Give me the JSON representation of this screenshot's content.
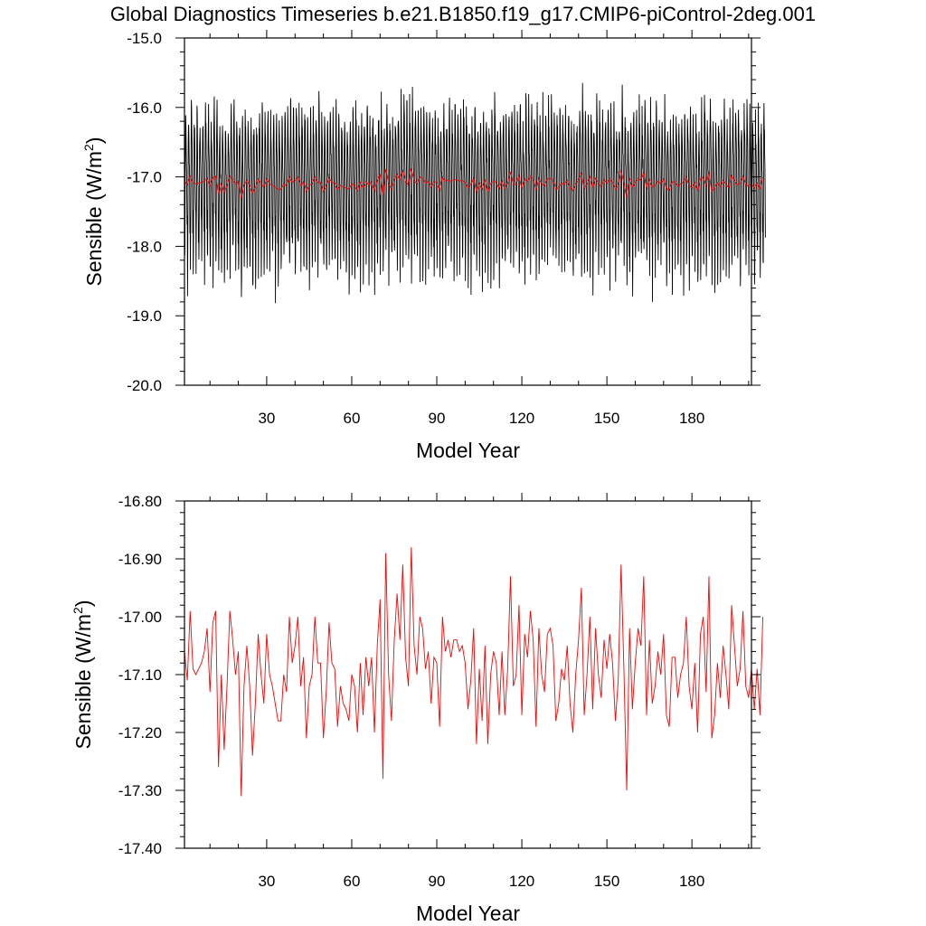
{
  "title": "Global Diagnostics Timeseries b.e21.B1850.f19_g17.CMIP6-piControl-2deg.001",
  "colors": {
    "monthly": "#000000",
    "annual": "#ff0000",
    "frame": "#000000"
  },
  "chart_data": [
    {
      "type": "line",
      "xlabel": "Model Year",
      "ylabel": "Sensible (W/m",
      "ylabel_sup": "2",
      "ylabel_close": ")",
      "xlim": [
        1,
        201
      ],
      "ylim": [
        -20.0,
        -15.0
      ],
      "x_ticks": [
        30,
        60,
        90,
        120,
        150,
        180
      ],
      "x_tick_labels": [
        "30",
        "60",
        "90",
        "120",
        "150",
        "180"
      ],
      "y_ticks": [
        -20.0,
        -19.0,
        -18.0,
        -17.0,
        -16.0,
        -15.0
      ],
      "y_tick_labels": [
        "-20.0",
        "-19.0",
        "-18.0",
        "-17.0",
        "-16.0",
        "-15.0"
      ],
      "series": [
        {
          "role": "monthly",
          "color": "#000000",
          "x_start": 1,
          "x_step": 0.08333,
          "monthly_cycle": [
            -17.7,
            -18.4,
            -18.1,
            -17.3,
            -16.6,
            -16.2,
            -16.3,
            -16.5,
            -16.8,
            -17.0,
            -17.3,
            -17.8
          ]
        },
        {
          "role": "annual",
          "color": "#ff0000",
          "x_start": 1,
          "x_step": 1,
          "values": [
            -17.06,
            -17.11,
            -16.99,
            -17.09,
            -17.1,
            -17.09,
            -17.08,
            -17.06,
            -17.02,
            -17.13,
            -17.01,
            -16.99,
            -17.26,
            -17.1,
            -17.23,
            -17.12,
            -16.99,
            -17.04,
            -17.1,
            -17.06,
            -17.31,
            -17.12,
            -17.05,
            -17.12,
            -17.24,
            -17.15,
            -17.03,
            -17.1,
            -17.15,
            -17.03,
            -17.1,
            -17.12,
            -17.15,
            -17.18,
            -17.18,
            -17.1,
            -17.13,
            -17.0,
            -17.08,
            -17.05,
            -17.0,
            -17.12,
            -17.07,
            -17.21,
            -17.12,
            -17.1,
            -17.0,
            -17.08,
            -17.08,
            -17.21,
            -17.13,
            -17.01,
            -17.08,
            -17.09,
            -17.19,
            -17.12,
            -17.15,
            -17.16,
            -17.18,
            -17.1,
            -17.12,
            -17.2,
            -17.08,
            -17.17,
            -17.07,
            -17.12,
            -17.07,
            -17.2,
            -17.05,
            -16.97,
            -17.28,
            -16.89,
            -17.1,
            -17.18,
            -17.04,
            -16.96,
            -17.04,
            -16.91,
            -17.07,
            -17.12,
            -16.88,
            -17.05,
            -17.1,
            -17.0,
            -17.02,
            -17.09,
            -17.06,
            -17.15,
            -17.07,
            -17.08,
            -17.19,
            -17.0,
            -17.06,
            -17.04,
            -17.07,
            -17.04,
            -17.04,
            -17.06,
            -17.05,
            -17.08,
            -17.16,
            -17.11,
            -17.02,
            -17.22,
            -17.09,
            -17.18,
            -17.05,
            -17.22,
            -17.1,
            -17.06,
            -17.08,
            -17.17,
            -17.06,
            -17.17,
            -17.09,
            -16.93,
            -17.12,
            -17.1,
            -16.98,
            -17.17,
            -17.03,
            -17.07,
            -16.99,
            -17.04,
            -17.19,
            -17.02,
            -17.1,
            -17.13,
            -17.03,
            -17.02,
            -17.05,
            -17.18,
            -17.15,
            -17.09,
            -17.11,
            -17.05,
            -17.15,
            -17.2,
            -17.1,
            -17.04,
            -16.95,
            -17.17,
            -17.1,
            -17.0,
            -17.16,
            -17.02,
            -17.1,
            -17.14,
            -17.04,
            -17.09,
            -17.03,
            -17.08,
            -17.18,
            -17.11,
            -16.91,
            -17.09,
            -17.3,
            -17.02,
            -17.16,
            -17.08,
            -17.02,
            -17.05,
            -16.93,
            -17.17,
            -17.04,
            -17.15,
            -17.12,
            -17.06,
            -17.1,
            -17.03,
            -17.17,
            -17.19,
            -17.07,
            -17.07,
            -17.14,
            -17.1,
            -17.08,
            -17.0,
            -17.12,
            -17.16,
            -17.08,
            -17.2,
            -17.03,
            -17.0,
            -17.13,
            -16.93,
            -17.21,
            -17.17,
            -17.08,
            -17.14,
            -17.05,
            -17.1,
            -17.16,
            -16.98,
            -17.05,
            -17.12,
            -17.09,
            -16.99,
            -17.12,
            -17.14,
            -17.09,
            -17.16,
            -17.09,
            -17.17,
            -17.0
          ]
        }
      ]
    },
    {
      "type": "line",
      "xlabel": "Model Year",
      "ylabel": "Sensible (W/m",
      "ylabel_sup": "2",
      "ylabel_close": ")",
      "xlim": [
        1,
        201
      ],
      "ylim": [
        -17.4,
        -16.8
      ],
      "x_ticks": [
        30,
        60,
        90,
        120,
        150,
        180
      ],
      "x_tick_labels": [
        "30",
        "60",
        "90",
        "120",
        "150",
        "180"
      ],
      "y_ticks": [
        -17.4,
        -17.3,
        -17.2,
        -17.1,
        -17.0,
        -16.9,
        -16.8
      ],
      "y_tick_labels": [
        "-17.40",
        "-17.30",
        "-17.20",
        "-17.10",
        "-17.00",
        "-16.90",
        "-16.80"
      ],
      "series": [
        {
          "role": "annual",
          "color": "#ff0000",
          "x_start": 1,
          "x_step": 1,
          "values": [
            -17.06,
            -17.11,
            -16.99,
            -17.09,
            -17.1,
            -17.09,
            -17.08,
            -17.06,
            -17.02,
            -17.13,
            -17.01,
            -16.99,
            -17.26,
            -17.1,
            -17.23,
            -17.12,
            -16.99,
            -17.04,
            -17.1,
            -17.06,
            -17.31,
            -17.12,
            -17.05,
            -17.12,
            -17.24,
            -17.15,
            -17.03,
            -17.1,
            -17.15,
            -17.03,
            -17.1,
            -17.12,
            -17.15,
            -17.18,
            -17.18,
            -17.1,
            -17.13,
            -17.0,
            -17.08,
            -17.05,
            -17.0,
            -17.12,
            -17.07,
            -17.21,
            -17.12,
            -17.1,
            -17.0,
            -17.08,
            -17.08,
            -17.21,
            -17.13,
            -17.01,
            -17.08,
            -17.09,
            -17.19,
            -17.12,
            -17.15,
            -17.16,
            -17.18,
            -17.1,
            -17.12,
            -17.2,
            -17.08,
            -17.17,
            -17.07,
            -17.12,
            -17.07,
            -17.2,
            -17.05,
            -16.97,
            -17.28,
            -16.89,
            -17.1,
            -17.18,
            -17.04,
            -16.96,
            -17.04,
            -16.91,
            -17.07,
            -17.12,
            -16.88,
            -17.05,
            -17.1,
            -17.0,
            -17.02,
            -17.09,
            -17.06,
            -17.15,
            -17.07,
            -17.08,
            -17.19,
            -17.0,
            -17.06,
            -17.04,
            -17.07,
            -17.04,
            -17.04,
            -17.06,
            -17.05,
            -17.08,
            -17.16,
            -17.11,
            -17.02,
            -17.22,
            -17.09,
            -17.18,
            -17.05,
            -17.22,
            -17.1,
            -17.06,
            -17.08,
            -17.17,
            -17.06,
            -17.17,
            -17.09,
            -16.93,
            -17.12,
            -17.1,
            -16.98,
            -17.17,
            -17.03,
            -17.07,
            -16.99,
            -17.04,
            -17.19,
            -17.02,
            -17.1,
            -17.13,
            -17.03,
            -17.02,
            -17.05,
            -17.18,
            -17.15,
            -17.09,
            -17.11,
            -17.05,
            -17.15,
            -17.2,
            -17.1,
            -17.04,
            -16.95,
            -17.17,
            -17.1,
            -17.0,
            -17.16,
            -17.02,
            -17.1,
            -17.14,
            -17.04,
            -17.09,
            -17.03,
            -17.08,
            -17.18,
            -17.11,
            -16.91,
            -17.09,
            -17.3,
            -17.02,
            -17.16,
            -17.08,
            -17.02,
            -17.05,
            -16.93,
            -17.17,
            -17.04,
            -17.15,
            -17.12,
            -17.06,
            -17.1,
            -17.03,
            -17.17,
            -17.19,
            -17.07,
            -17.07,
            -17.14,
            -17.1,
            -17.08,
            -17.0,
            -17.12,
            -17.16,
            -17.08,
            -17.2,
            -17.03,
            -17.0,
            -17.13,
            -16.93,
            -17.21,
            -17.17,
            -17.08,
            -17.14,
            -17.05,
            -17.1,
            -17.16,
            -16.98,
            -17.05,
            -17.12,
            -17.09,
            -16.99,
            -17.12,
            -17.14,
            -17.09,
            -17.16,
            -17.09,
            -17.17,
            -17.0
          ]
        }
      ]
    }
  ]
}
